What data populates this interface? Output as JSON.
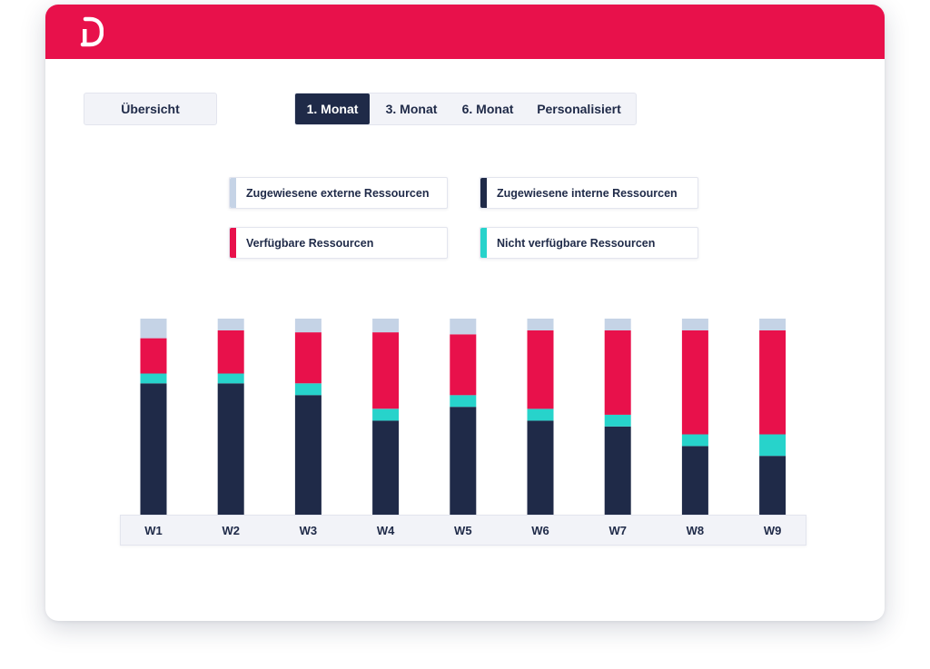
{
  "header": {
    "logo_name": "brand-logo",
    "color": "#e8114b"
  },
  "controls": {
    "overview_label": "Übersicht",
    "tabs": [
      {
        "label": "1. Monat",
        "active": true
      },
      {
        "label": "3. Monat",
        "active": false
      },
      {
        "label": "6. Monat",
        "active": false
      },
      {
        "label": "Personalisiert",
        "active": false
      }
    ]
  },
  "legend": [
    {
      "label": "Zugewiesene externe Ressourcen",
      "color": "#c5d3e6"
    },
    {
      "label": "Zugewiesene interne Ressourcen",
      "color": "#1f2a48"
    },
    {
      "label": "Verfügbare Ressourcen",
      "color": "#e8114b"
    },
    {
      "label": "Nicht verfügbare Ressourcen",
      "color": "#27d3cb"
    }
  ],
  "chart_data": {
    "type": "bar",
    "stacked": true,
    "categories": [
      "W1",
      "W2",
      "W3",
      "W4",
      "W5",
      "W6",
      "W7",
      "W8",
      "W9"
    ],
    "series": [
      {
        "name": "Zugewiesene interne Ressourcen",
        "color": "#1f2a48",
        "values": [
          67,
          67,
          61,
          48,
          55,
          48,
          45,
          35,
          30
        ]
      },
      {
        "name": "Nicht verfügbare Ressourcen",
        "color": "#27d3cb",
        "values": [
          5,
          5,
          6,
          6,
          6,
          6,
          6,
          6,
          11
        ]
      },
      {
        "name": "Verfügbare Ressourcen",
        "color": "#e8114b",
        "values": [
          18,
          22,
          26,
          39,
          31,
          40,
          43,
          53,
          53
        ]
      },
      {
        "name": "Zugewiesene externe Ressourcen",
        "color": "#c5d3e6",
        "values": [
          10,
          6,
          7,
          7,
          8,
          6,
          6,
          6,
          6
        ]
      }
    ],
    "ylim": [
      0,
      100
    ],
    "grid": false,
    "legend_position": "top"
  }
}
